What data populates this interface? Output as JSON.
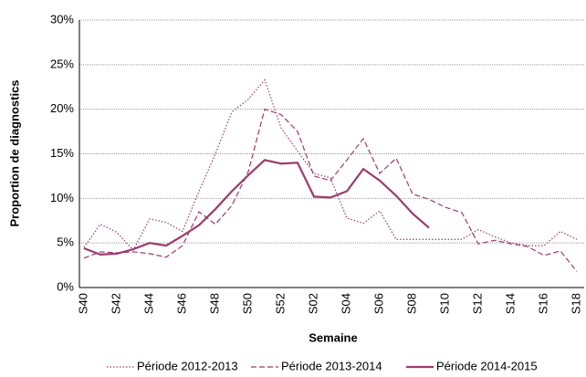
{
  "chart_data": {
    "type": "line",
    "x_label": "Semaine",
    "y_label": "Proportion de diagnostics",
    "categories": [
      "S40",
      null,
      "S42",
      null,
      "S44",
      null,
      "S46",
      null,
      "S48",
      null,
      "S50",
      null,
      "S52",
      null,
      "S02",
      null,
      "S04",
      null,
      "S06",
      null,
      "S08",
      null,
      "S10",
      null,
      "S12",
      null,
      "S14",
      null,
      "S16",
      null,
      "S18"
    ],
    "series": [
      {
        "name": "Période 2012-2013",
        "color": "#9c3b6c",
        "line_style": "dotted",
        "values": [
          4.5,
          7.1,
          6.2,
          4.2,
          7.7,
          7.3,
          6.3,
          10.8,
          15.0,
          19.7,
          21.1,
          23.3,
          17.9,
          15.3,
          12.8,
          12.3,
          7.8,
          7.2,
          8.6,
          5.4,
          5.4,
          5.4,
          5.4,
          5.4,
          6.5,
          5.7,
          5.0,
          4.7,
          4.7,
          6.3,
          5.4
        ]
      },
      {
        "name": "Période 2013-2014",
        "color": "#9c3b6c",
        "line_style": "dashed",
        "values": [
          3.3,
          4.0,
          3.9,
          4.0,
          3.8,
          3.4,
          4.7,
          8.5,
          7.1,
          9.2,
          13.0,
          20.0,
          19.4,
          17.5,
          12.5,
          12.0,
          14.3,
          16.7,
          12.8,
          14.5,
          10.5,
          9.9,
          9.0,
          8.4,
          4.9,
          5.3,
          4.9,
          4.6,
          3.6,
          4.1,
          1.8
        ]
      },
      {
        "name": "Période 2014-2015",
        "color": "#9c3b6c",
        "line_style": "solid",
        "values": [
          4.4,
          3.7,
          3.8,
          4.3,
          5.0,
          4.7,
          5.8,
          7.0,
          8.8,
          10.8,
          12.6,
          14.3,
          13.9,
          14.0,
          10.2,
          10.1,
          10.8,
          13.3,
          12.0,
          10.3,
          8.3,
          6.7,
          null,
          null,
          null,
          null,
          null,
          null,
          null,
          null,
          null
        ]
      }
    ],
    "ylim": [
      0,
      30
    ],
    "yticks": [
      {
        "value": 0,
        "label": "0%"
      },
      {
        "value": 5,
        "label": "5%"
      },
      {
        "value": 10,
        "label": "10%"
      },
      {
        "value": 15,
        "label": "15%"
      },
      {
        "value": 20,
        "label": "20%"
      },
      {
        "value": 25,
        "label": "25%"
      },
      {
        "value": 30,
        "label": "30%"
      }
    ],
    "grid": true,
    "legend": "bottom"
  }
}
